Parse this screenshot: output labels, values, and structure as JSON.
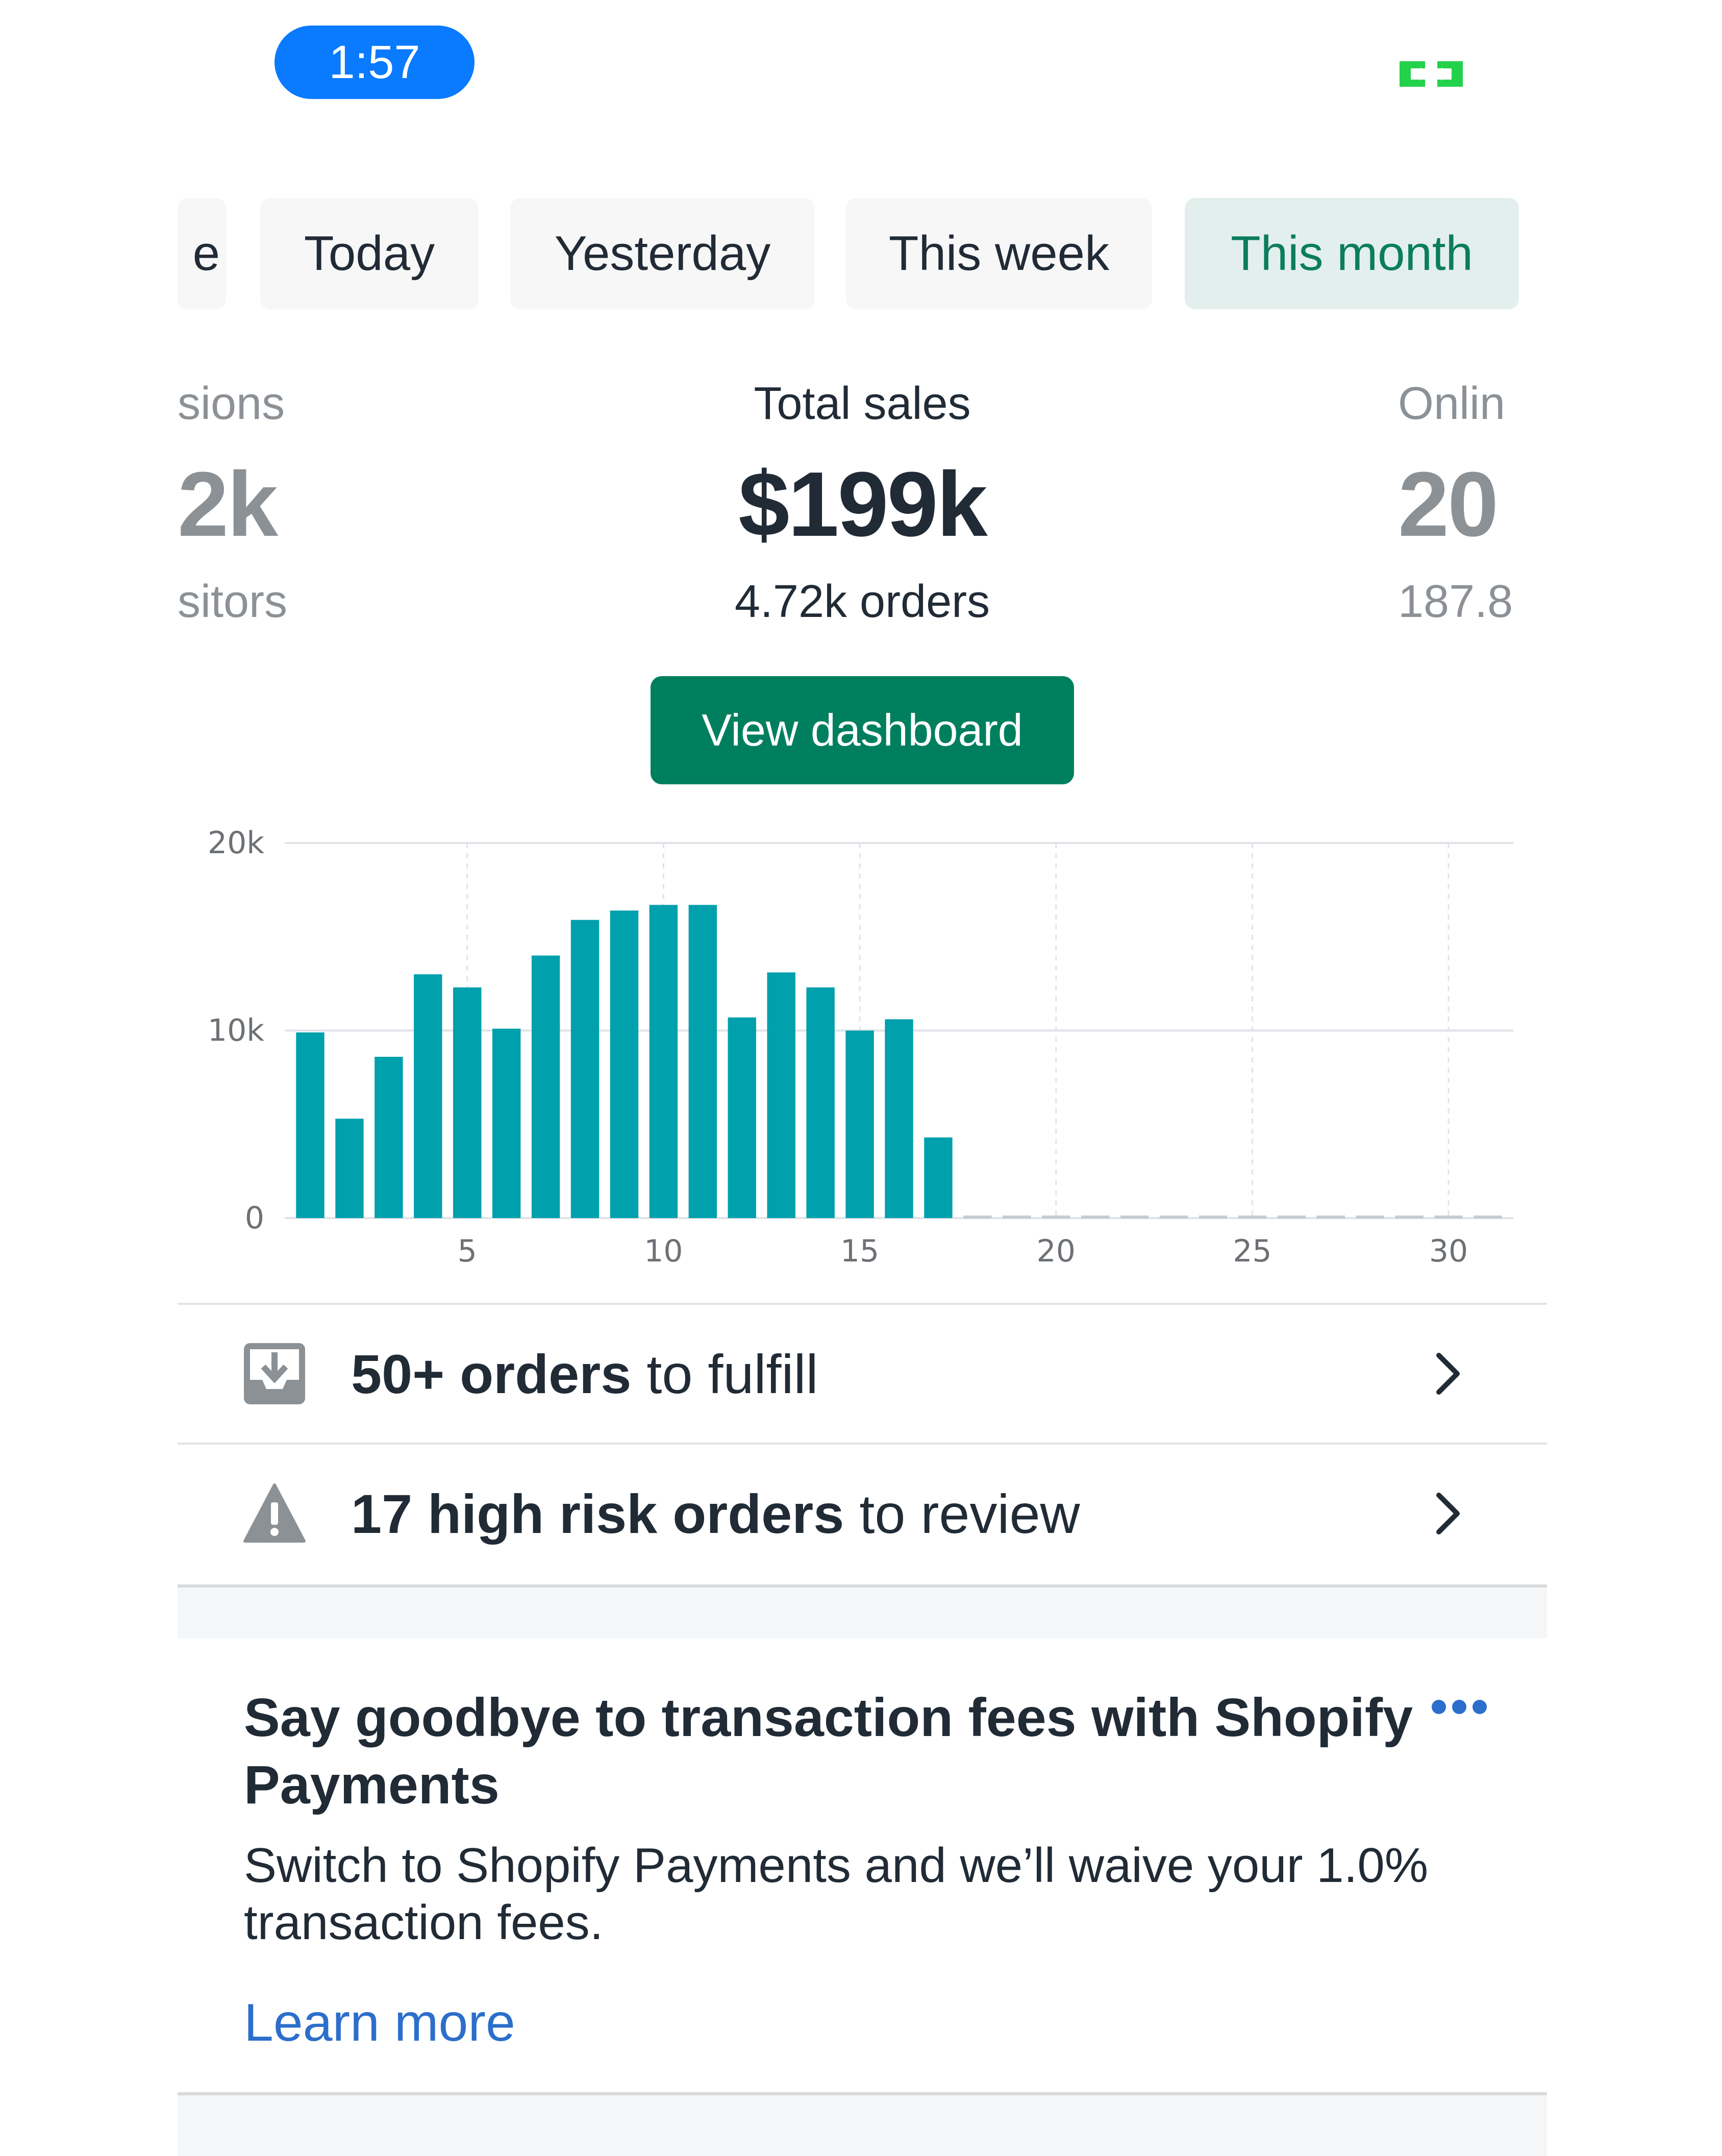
{
  "status_bar": {
    "time": "1:57",
    "icon": "screen-share-icon",
    "icon_color": "#24d14a"
  },
  "tabs": [
    {
      "label": "e",
      "active": false
    },
    {
      "label": "Today",
      "active": false
    },
    {
      "label": "Yesterday",
      "active": false
    },
    {
      "label": "This week",
      "active": false
    },
    {
      "label": "This month",
      "active": true
    }
  ],
  "metrics": {
    "left": {
      "label": "sions",
      "value": "2k",
      "sub": "sitors"
    },
    "center": {
      "label": "Total sales",
      "value": "$199k",
      "sub": "4.72k orders"
    },
    "right": {
      "label": "Onlin",
      "value": "20",
      "sub": "187.8"
    }
  },
  "view_dashboard_label": "View dashboard",
  "chart_data": {
    "type": "bar",
    "x": [
      1,
      2,
      3,
      4,
      5,
      6,
      7,
      8,
      9,
      10,
      11,
      12,
      13,
      14,
      15,
      16,
      17,
      18,
      19,
      20,
      21,
      22,
      23,
      24,
      25,
      26,
      27,
      28,
      29,
      30,
      31
    ],
    "values": [
      9900,
      5300,
      8600,
      13000,
      12300,
      10100,
      14000,
      15900,
      16400,
      16700,
      16700,
      10700,
      13100,
      12300,
      10000,
      10600,
      4300,
      0,
      0,
      0,
      0,
      0,
      0,
      0,
      0,
      0,
      0,
      0,
      0,
      0,
      0
    ],
    "ylim": [
      0,
      20000
    ],
    "y_ticks": [
      {
        "value": 0,
        "label": "0"
      },
      {
        "value": 10000,
        "label": "10k"
      },
      {
        "value": 20000,
        "label": "20k"
      }
    ],
    "x_ticks": [
      5,
      10,
      15,
      20,
      25,
      30
    ],
    "x_tick_labels": [
      "5",
      "10",
      "15",
      "20",
      "25",
      "30"
    ],
    "bar_color": "#00a0ac",
    "grid": true
  },
  "rows": [
    {
      "icon": "inbox-download-icon",
      "bold": "50+ orders",
      "rest": " to fulfill"
    },
    {
      "icon": "warning-triangle-icon",
      "bold": "17 high risk orders",
      "rest": " to review"
    }
  ],
  "promo": {
    "title": "Say goodbye to transaction fees with Shopify Payments",
    "body": "Switch to Shopify Payments and we’ll waive your 1.0% transaction fees.",
    "link": "Learn more",
    "more_icon": "more-horizontal-icon"
  }
}
